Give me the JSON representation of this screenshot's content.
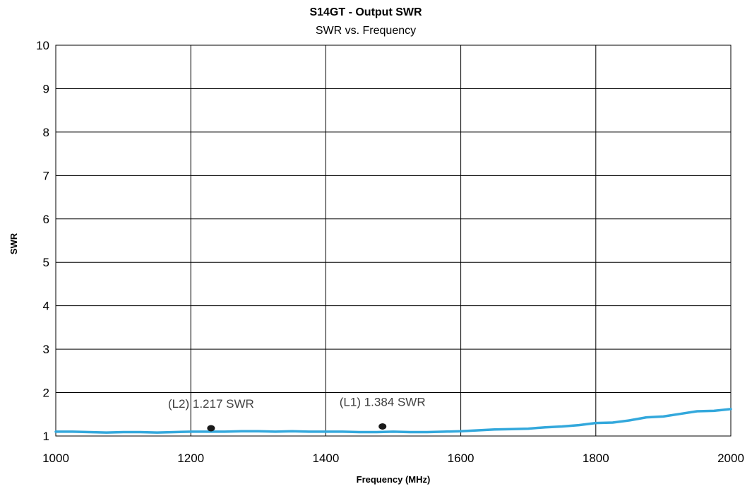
{
  "chart_data": {
    "type": "line",
    "title": "S14GT - Output SWR",
    "subtitle": "SWR vs. Frequency",
    "xlabel": "Frequency (MHz)",
    "ylabel": "SWR",
    "xlim": [
      1000,
      2000
    ],
    "ylim": [
      1,
      10
    ],
    "xticks": [
      1000,
      1200,
      1400,
      1600,
      1800,
      2000
    ],
    "yticks": [
      1,
      2,
      3,
      4,
      5,
      6,
      7,
      8,
      9,
      10
    ],
    "grid": true,
    "series": [
      {
        "color": "#33a8dc",
        "x": [
          1000,
          1025,
          1050,
          1075,
          1100,
          1125,
          1150,
          1175,
          1200,
          1225,
          1250,
          1275,
          1300,
          1325,
          1350,
          1375,
          1400,
          1425,
          1450,
          1475,
          1500,
          1525,
          1550,
          1575,
          1600,
          1625,
          1650,
          1675,
          1700,
          1725,
          1750,
          1775,
          1800,
          1825,
          1850,
          1875,
          1900,
          1925,
          1950,
          1975,
          2000
        ],
        "y": [
          1.1,
          1.1,
          1.09,
          1.08,
          1.09,
          1.09,
          1.08,
          1.09,
          1.1,
          1.1,
          1.1,
          1.11,
          1.11,
          1.1,
          1.11,
          1.1,
          1.1,
          1.1,
          1.09,
          1.09,
          1.1,
          1.09,
          1.09,
          1.1,
          1.11,
          1.13,
          1.15,
          1.16,
          1.17,
          1.2,
          1.22,
          1.25,
          1.3,
          1.31,
          1.36,
          1.43,
          1.45,
          1.51,
          1.57,
          1.58,
          1.62
        ]
      }
    ],
    "markers": [
      {
        "label": "(L2) 1.217 SWR",
        "x": 1230,
        "y": 1.18
      },
      {
        "label": "(L1) 1.384 SWR",
        "x": 1484,
        "y": 1.22
      }
    ]
  }
}
